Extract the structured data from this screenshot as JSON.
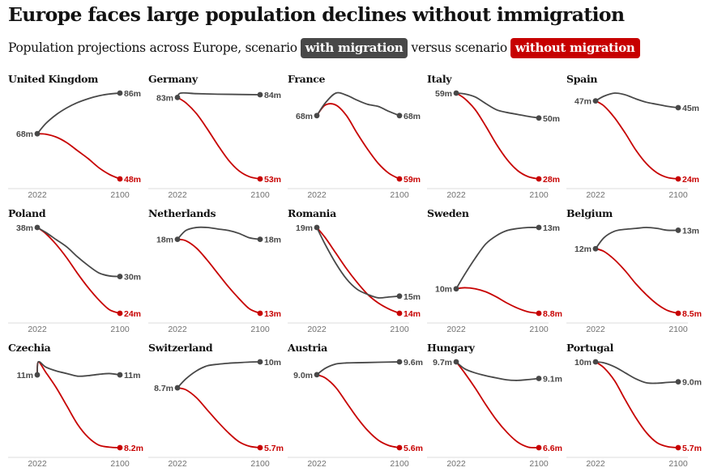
{
  "title": "Europe faces large population declines without immigration",
  "subtitle": {
    "prefix": "Population projections across Europe, scenario",
    "with_label": "with migration",
    "middle": "versus scenario",
    "without_label": "without migration"
  },
  "colors": {
    "with_migration": "#484848",
    "without_migration": "#c70000",
    "axis": "#dcdcdc",
    "tick_text": "#707070",
    "text": "#121212"
  },
  "chart_data": {
    "type": "line",
    "x": [
      2022,
      2100
    ],
    "x_tick_labels": [
      "2022",
      "2100"
    ],
    "series_names": [
      "with migration",
      "without migration"
    ],
    "panels": [
      {
        "country": "United Kingdom",
        "start_label": "68m",
        "with_label": "86m",
        "without_label": "48m",
        "with": [
          [
            2022,
            68
          ],
          [
            2030,
            72.5
          ],
          [
            2040,
            76.5
          ],
          [
            2050,
            79.5
          ],
          [
            2060,
            81.8
          ],
          [
            2070,
            83.5
          ],
          [
            2080,
            84.8
          ],
          [
            2090,
            85.6
          ],
          [
            2100,
            86
          ]
        ],
        "without": [
          [
            2022,
            68
          ],
          [
            2030,
            67.8
          ],
          [
            2040,
            66.5
          ],
          [
            2050,
            64
          ],
          [
            2060,
            60.5
          ],
          [
            2070,
            57
          ],
          [
            2080,
            53
          ],
          [
            2090,
            50
          ],
          [
            2100,
            48
          ]
        ]
      },
      {
        "country": "Germany",
        "start_label": "83m",
        "with_label": "84m",
        "without_label": "53m",
        "with": [
          [
            2022,
            83
          ],
          [
            2025,
            84.6
          ],
          [
            2040,
            84.4
          ],
          [
            2060,
            84.2
          ],
          [
            2080,
            84.1
          ],
          [
            2100,
            84
          ]
        ],
        "without": [
          [
            2022,
            83
          ],
          [
            2030,
            81
          ],
          [
            2040,
            77
          ],
          [
            2050,
            71.5
          ],
          [
            2060,
            65.5
          ],
          [
            2070,
            60
          ],
          [
            2080,
            56
          ],
          [
            2090,
            53.8
          ],
          [
            2100,
            53
          ]
        ]
      },
      {
        "country": "France",
        "start_label": "68m",
        "with_label": "68m",
        "without_label": "59m",
        "with": [
          [
            2022,
            68
          ],
          [
            2030,
            69.8
          ],
          [
            2040,
            71.2
          ],
          [
            2050,
            70.9
          ],
          [
            2060,
            70.2
          ],
          [
            2070,
            69.6
          ],
          [
            2080,
            69.3
          ],
          [
            2090,
            68.6
          ],
          [
            2100,
            68
          ]
        ],
        "without": [
          [
            2022,
            68
          ],
          [
            2030,
            69.5
          ],
          [
            2040,
            69.5
          ],
          [
            2050,
            68
          ],
          [
            2060,
            65.5
          ],
          [
            2070,
            63.2
          ],
          [
            2080,
            61.2
          ],
          [
            2090,
            59.8
          ],
          [
            2100,
            59
          ]
        ]
      },
      {
        "country": "Italy",
        "start_label": "59m",
        "with_label": "50m",
        "without_label": "28m",
        "with": [
          [
            2022,
            59
          ],
          [
            2030,
            58.7
          ],
          [
            2040,
            57.6
          ],
          [
            2050,
            55.2
          ],
          [
            2060,
            53
          ],
          [
            2070,
            52
          ],
          [
            2080,
            51.3
          ],
          [
            2090,
            50.6
          ],
          [
            2100,
            50
          ]
        ],
        "without": [
          [
            2022,
            59
          ],
          [
            2030,
            57
          ],
          [
            2040,
            53
          ],
          [
            2050,
            47
          ],
          [
            2060,
            40.5
          ],
          [
            2070,
            35
          ],
          [
            2080,
            31
          ],
          [
            2090,
            28.8
          ],
          [
            2100,
            28
          ]
        ]
      },
      {
        "country": "Spain",
        "start_label": "47m",
        "with_label": "45m",
        "without_label": "24m",
        "with": [
          [
            2022,
            47
          ],
          [
            2030,
            48.4
          ],
          [
            2040,
            49.3
          ],
          [
            2050,
            48.8
          ],
          [
            2060,
            47.6
          ],
          [
            2070,
            46.6
          ],
          [
            2080,
            46
          ],
          [
            2090,
            45.4
          ],
          [
            2100,
            45
          ]
        ],
        "without": [
          [
            2022,
            47
          ],
          [
            2030,
            45.5
          ],
          [
            2040,
            42
          ],
          [
            2050,
            37.5
          ],
          [
            2060,
            32.5
          ],
          [
            2070,
            28.5
          ],
          [
            2080,
            25.8
          ],
          [
            2090,
            24.4
          ],
          [
            2100,
            24
          ]
        ]
      },
      {
        "country": "Poland",
        "start_label": "38m",
        "with_label": "30m",
        "without_label": "24m",
        "with": [
          [
            2022,
            38
          ],
          [
            2030,
            37.2
          ],
          [
            2040,
            36
          ],
          [
            2050,
            34.8
          ],
          [
            2060,
            33.2
          ],
          [
            2070,
            31.8
          ],
          [
            2080,
            30.6
          ],
          [
            2090,
            30.1
          ],
          [
            2100,
            30
          ]
        ],
        "without": [
          [
            2022,
            38
          ],
          [
            2030,
            37
          ],
          [
            2040,
            35.2
          ],
          [
            2050,
            33
          ],
          [
            2060,
            30.5
          ],
          [
            2070,
            28.2
          ],
          [
            2080,
            26.2
          ],
          [
            2090,
            24.6
          ],
          [
            2100,
            24
          ]
        ]
      },
      {
        "country": "Netherlands",
        "start_label": "18m",
        "with_label": "18m",
        "without_label": "13m",
        "with": [
          [
            2022,
            18
          ],
          [
            2030,
            18.6
          ],
          [
            2040,
            18.8
          ],
          [
            2050,
            18.8
          ],
          [
            2060,
            18.7
          ],
          [
            2070,
            18.6
          ],
          [
            2080,
            18.4
          ],
          [
            2090,
            18.1
          ],
          [
            2100,
            18
          ]
        ],
        "without": [
          [
            2022,
            18
          ],
          [
            2030,
            17.9
          ],
          [
            2040,
            17.4
          ],
          [
            2050,
            16.6
          ],
          [
            2060,
            15.7
          ],
          [
            2070,
            14.8
          ],
          [
            2080,
            14
          ],
          [
            2090,
            13.3
          ],
          [
            2100,
            13
          ]
        ]
      },
      {
        "country": "Romania",
        "start_label": "19m",
        "with_label": "15m",
        "without_label": "14m",
        "with": [
          [
            2022,
            19
          ],
          [
            2030,
            18
          ],
          [
            2040,
            16.9
          ],
          [
            2050,
            16
          ],
          [
            2060,
            15.4
          ],
          [
            2070,
            15.1
          ],
          [
            2080,
            14.9
          ],
          [
            2090,
            14.95
          ],
          [
            2100,
            15
          ]
        ],
        "without": [
          [
            2022,
            19
          ],
          [
            2030,
            18.4
          ],
          [
            2040,
            17.5
          ],
          [
            2050,
            16.6
          ],
          [
            2060,
            15.8
          ],
          [
            2070,
            15.1
          ],
          [
            2080,
            14.6
          ],
          [
            2090,
            14.25
          ],
          [
            2100,
            14
          ]
        ]
      },
      {
        "country": "Sweden",
        "start_label": "10m",
        "with_label": "13m",
        "without_label": "8.8m",
        "with": [
          [
            2022,
            10
          ],
          [
            2030,
            10.7
          ],
          [
            2040,
            11.5
          ],
          [
            2050,
            12.2
          ],
          [
            2060,
            12.6
          ],
          [
            2070,
            12.85
          ],
          [
            2080,
            12.95
          ],
          [
            2090,
            13
          ],
          [
            2100,
            13
          ]
        ],
        "without": [
          [
            2022,
            10
          ],
          [
            2030,
            10.05
          ],
          [
            2040,
            10
          ],
          [
            2050,
            9.85
          ],
          [
            2060,
            9.6
          ],
          [
            2070,
            9.3
          ],
          [
            2080,
            9.05
          ],
          [
            2090,
            8.87
          ],
          [
            2100,
            8.8
          ]
        ]
      },
      {
        "country": "Belgium",
        "start_label": "12m",
        "with_label": "13m",
        "without_label": "8.5m",
        "with": [
          [
            2022,
            12
          ],
          [
            2030,
            12.6
          ],
          [
            2040,
            12.95
          ],
          [
            2050,
            13.05
          ],
          [
            2060,
            13.1
          ],
          [
            2070,
            13.15
          ],
          [
            2080,
            13.1
          ],
          [
            2090,
            13
          ],
          [
            2100,
            13
          ]
        ],
        "without": [
          [
            2022,
            12
          ],
          [
            2030,
            11.85
          ],
          [
            2040,
            11.4
          ],
          [
            2050,
            10.8
          ],
          [
            2060,
            10.1
          ],
          [
            2070,
            9.5
          ],
          [
            2080,
            9
          ],
          [
            2090,
            8.65
          ],
          [
            2100,
            8.5
          ]
        ]
      },
      {
        "country": "Czechia",
        "start_label": "11m",
        "with_label": "11m",
        "without_label": "8.2m",
        "with": [
          [
            2022,
            11
          ],
          [
            2023,
            11.5
          ],
          [
            2030,
            11.3
          ],
          [
            2040,
            11.15
          ],
          [
            2050,
            11.05
          ],
          [
            2060,
            10.95
          ],
          [
            2070,
            10.97
          ],
          [
            2080,
            11.02
          ],
          [
            2090,
            11.05
          ],
          [
            2100,
            11
          ]
        ],
        "without": [
          [
            2022,
            11
          ],
          [
            2023,
            11.5
          ],
          [
            2030,
            11.1
          ],
          [
            2040,
            10.5
          ],
          [
            2050,
            9.8
          ],
          [
            2060,
            9.1
          ],
          [
            2070,
            8.6
          ],
          [
            2080,
            8.3
          ],
          [
            2090,
            8.22
          ],
          [
            2100,
            8.2
          ]
        ]
      },
      {
        "country": "Switzerland",
        "start_label": "8.7m",
        "with_label": "10m",
        "without_label": "5.7m",
        "with": [
          [
            2022,
            8.7
          ],
          [
            2030,
            9.15
          ],
          [
            2040,
            9.55
          ],
          [
            2050,
            9.8
          ],
          [
            2060,
            9.88
          ],
          [
            2070,
            9.93
          ],
          [
            2080,
            9.96
          ],
          [
            2090,
            9.99
          ],
          [
            2100,
            10
          ]
        ],
        "without": [
          [
            2022,
            8.7
          ],
          [
            2030,
            8.6
          ],
          [
            2040,
            8.2
          ],
          [
            2050,
            7.6
          ],
          [
            2060,
            7
          ],
          [
            2070,
            6.45
          ],
          [
            2080,
            6
          ],
          [
            2090,
            5.77
          ],
          [
            2100,
            5.7
          ]
        ]
      },
      {
        "country": "Austria",
        "start_label": "9.0m",
        "with_label": "9.6m",
        "without_label": "5.6m",
        "with": [
          [
            2022,
            9
          ],
          [
            2030,
            9.3
          ],
          [
            2040,
            9.5
          ],
          [
            2050,
            9.55
          ],
          [
            2060,
            9.56
          ],
          [
            2070,
            9.57
          ],
          [
            2080,
            9.58
          ],
          [
            2090,
            9.59
          ],
          [
            2100,
            9.6
          ]
        ],
        "without": [
          [
            2022,
            9
          ],
          [
            2030,
            8.85
          ],
          [
            2040,
            8.4
          ],
          [
            2050,
            7.7
          ],
          [
            2060,
            7
          ],
          [
            2070,
            6.4
          ],
          [
            2080,
            5.95
          ],
          [
            2090,
            5.7
          ],
          [
            2100,
            5.6
          ]
        ]
      },
      {
        "country": "Hungary",
        "start_label": "9.7m",
        "with_label": "9.1m",
        "without_label": "6.6m",
        "with": [
          [
            2022,
            9.7
          ],
          [
            2030,
            9.45
          ],
          [
            2040,
            9.3
          ],
          [
            2050,
            9.2
          ],
          [
            2060,
            9.12
          ],
          [
            2070,
            9.05
          ],
          [
            2080,
            9.03
          ],
          [
            2090,
            9.06
          ],
          [
            2100,
            9.1
          ]
        ],
        "without": [
          [
            2022,
            9.7
          ],
          [
            2030,
            9.3
          ],
          [
            2040,
            8.75
          ],
          [
            2050,
            8.15
          ],
          [
            2060,
            7.6
          ],
          [
            2070,
            7.15
          ],
          [
            2080,
            6.8
          ],
          [
            2090,
            6.62
          ],
          [
            2100,
            6.6
          ]
        ]
      },
      {
        "country": "Portugal",
        "start_label": "10m",
        "with_label": "9.0m",
        "without_label": "5.7m",
        "with": [
          [
            2022,
            10
          ],
          [
            2030,
            9.95
          ],
          [
            2040,
            9.75
          ],
          [
            2050,
            9.45
          ],
          [
            2060,
            9.15
          ],
          [
            2070,
            8.95
          ],
          [
            2080,
            8.93
          ],
          [
            2090,
            8.97
          ],
          [
            2100,
            9
          ]
        ],
        "without": [
          [
            2022,
            10
          ],
          [
            2030,
            9.7
          ],
          [
            2040,
            9.05
          ],
          [
            2050,
            8.1
          ],
          [
            2060,
            7.2
          ],
          [
            2070,
            6.45
          ],
          [
            2080,
            5.95
          ],
          [
            2090,
            5.75
          ],
          [
            2100,
            5.7
          ]
        ]
      }
    ]
  }
}
